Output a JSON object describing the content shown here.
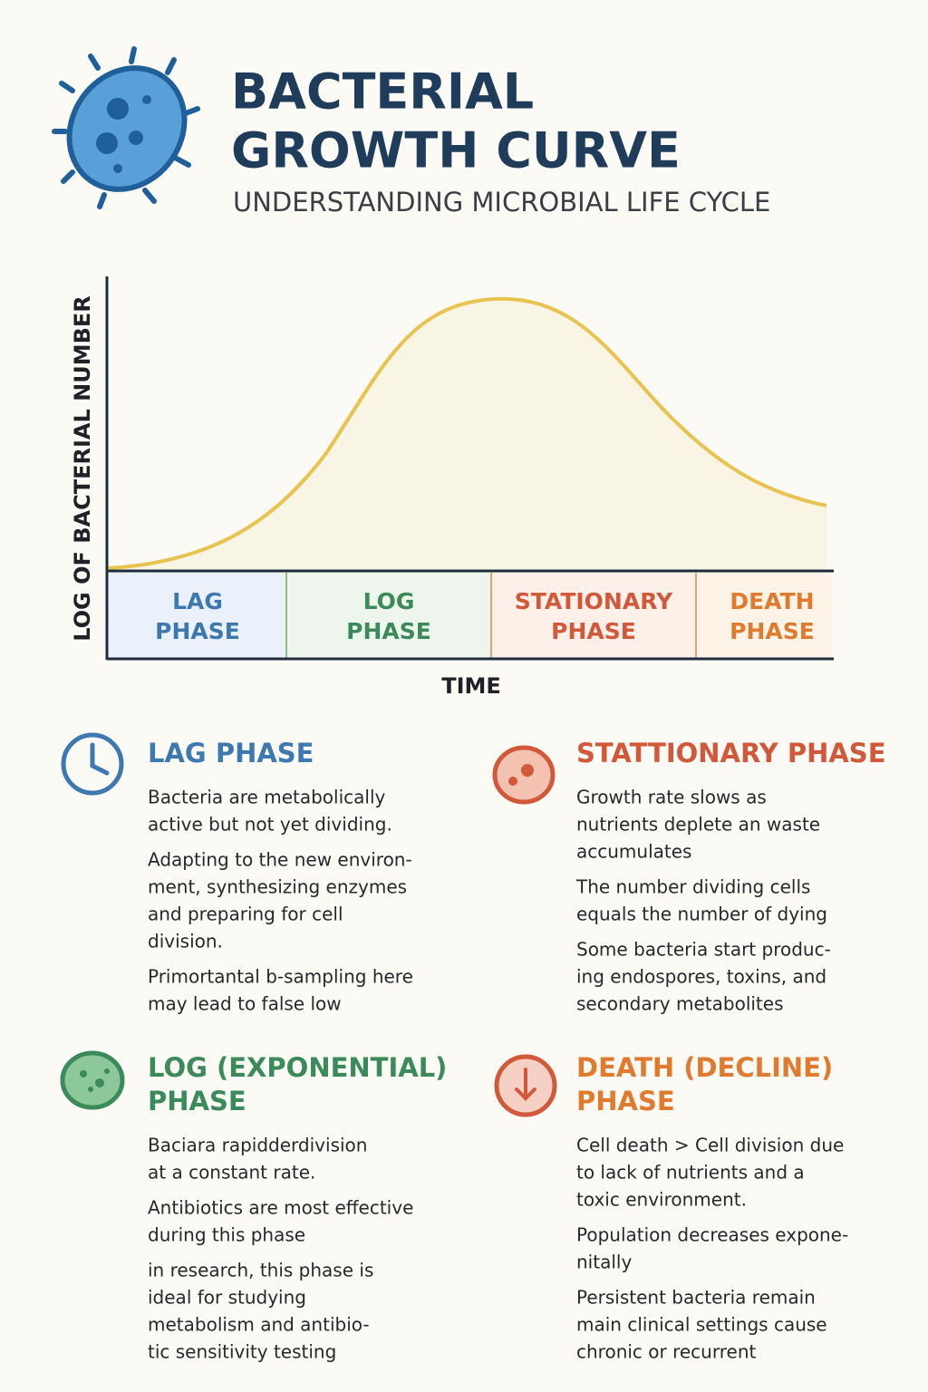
{
  "header": {
    "title": [
      "BACTERIAL",
      "GROWTH CURVE"
    ],
    "subtitle": "UNDERSTANDING MICROBIAL LIFE CYCLE"
  },
  "diagram": {
    "y_label": "LOG OF BACTERIAL NUMBER",
    "x_label": "TIME",
    "phases": [
      [
        "LAG",
        "PHASE"
      ],
      [
        "LOG",
        "PHASE"
      ],
      [
        "STATIONARY",
        "PHASE"
      ],
      [
        "DEATH",
        "PHASE"
      ]
    ]
  },
  "sections": [
    {
      "title": [
        "LAG PHASE"
      ],
      "paragraphs": [
        [
          "Bacteria are metabolically",
          "active but not yet dividing."
        ],
        [
          "Adapting to the new environ-",
          "ment, synthesizing enzymes",
          "and preparing for cell",
          "division."
        ],
        [
          "Primortantal b-sampling here",
          "may lead to false low"
        ]
      ]
    },
    {
      "title": [
        "STATTIONARY PHASE"
      ],
      "paragraphs": [
        [
          "Growth rate slows as",
          "nutrients deplete an waste",
          "accumulates"
        ],
        [
          "The number dividing cells",
          "equals the number of dying"
        ],
        [
          "Some bacteria start produc-",
          "ing endospores, toxins, and",
          "secondary metabolites"
        ]
      ]
    },
    {
      "title": [
        "LOG (EXPONENTIAL)",
        "PHASE"
      ],
      "paragraphs": [
        [
          "Baciara rapidderdivision",
          "at a constant rate."
        ],
        [
          "Antibiotics are most effective",
          "during this phase"
        ],
        [
          "in research, this phase is",
          "ideal for studying",
          "metabolism and antibio-",
          "tic sensitivity testing"
        ]
      ]
    },
    {
      "title": [
        "DEATH (DECLINE)",
        "PHASE"
      ],
      "paragraphs": [
        [
          "Cell death > Cell division due",
          "to lack of nutrients and a",
          "toxic environment."
        ],
        [
          "Population decreases expone-",
          "nitally"
        ],
        [
          "Persistent bacteria remain",
          "main clinical settings cause",
          "chronic or recurrent"
        ]
      ]
    }
  ]
}
